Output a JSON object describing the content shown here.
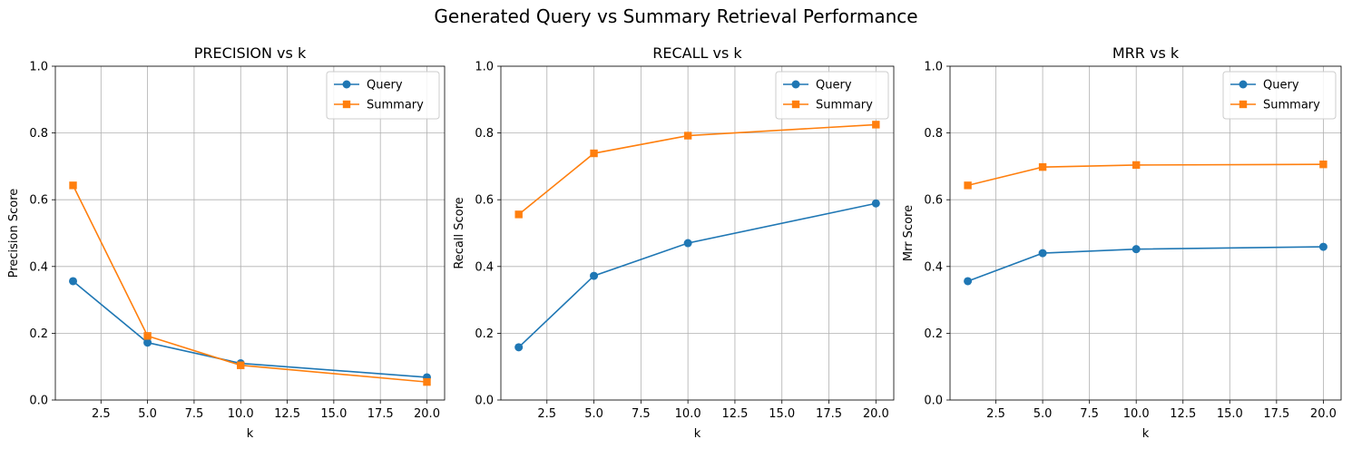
{
  "suptitle": "Generated Query vs Summary Retrieval Performance",
  "colors": {
    "query": "#1f77b4",
    "summary": "#ff7f0e",
    "grid": "#b0b0b0"
  },
  "chart_data": [
    {
      "type": "line",
      "title": "PRECISION vs k",
      "xlabel": "k",
      "ylabel": "Precision Score",
      "x": [
        1,
        5,
        10,
        20
      ],
      "xlim": [
        0.05,
        20.95
      ],
      "ylim": [
        0,
        1
      ],
      "xticks": [
        "2.5",
        "5.0",
        "7.5",
        "10.0",
        "12.5",
        "15.0",
        "17.5",
        "20.0"
      ],
      "yticks": [
        "0.0",
        "0.2",
        "0.4",
        "0.6",
        "0.8",
        "1.0"
      ],
      "grid": true,
      "legend": "top-right",
      "series": [
        {
          "name": "Query",
          "marker": "circle",
          "values": [
            0.356,
            0.172,
            0.11,
            0.068
          ]
        },
        {
          "name": "Summary",
          "marker": "square",
          "values": [
            0.643,
            0.192,
            0.104,
            0.054
          ]
        }
      ]
    },
    {
      "type": "line",
      "title": "RECALL vs k",
      "xlabel": "k",
      "ylabel": "Recall Score",
      "x": [
        1,
        5,
        10,
        20
      ],
      "xlim": [
        0.05,
        20.95
      ],
      "ylim": [
        0,
        1
      ],
      "xticks": [
        "2.5",
        "5.0",
        "7.5",
        "10.0",
        "12.5",
        "15.0",
        "17.5",
        "20.0"
      ],
      "yticks": [
        "0.0",
        "0.2",
        "0.4",
        "0.6",
        "0.8",
        "1.0"
      ],
      "grid": true,
      "legend": "top-right",
      "series": [
        {
          "name": "Query",
          "marker": "circle",
          "values": [
            0.158,
            0.372,
            0.47,
            0.589
          ]
        },
        {
          "name": "Summary",
          "marker": "square",
          "values": [
            0.556,
            0.739,
            0.792,
            0.825
          ]
        }
      ]
    },
    {
      "type": "line",
      "title": "MRR vs k",
      "xlabel": "k",
      "ylabel": "Mrr Score",
      "x": [
        1,
        5,
        10,
        20
      ],
      "xlim": [
        0.05,
        20.95
      ],
      "ylim": [
        0,
        1
      ],
      "xticks": [
        "2.5",
        "5.0",
        "7.5",
        "10.0",
        "12.5",
        "15.0",
        "17.5",
        "20.0"
      ],
      "yticks": [
        "0.0",
        "0.2",
        "0.4",
        "0.6",
        "0.8",
        "1.0"
      ],
      "grid": true,
      "legend": "top-right",
      "series": [
        {
          "name": "Query",
          "marker": "circle",
          "values": [
            0.356,
            0.44,
            0.452,
            0.459
          ]
        },
        {
          "name": "Summary",
          "marker": "square",
          "values": [
            0.643,
            0.698,
            0.704,
            0.706
          ]
        }
      ]
    }
  ]
}
